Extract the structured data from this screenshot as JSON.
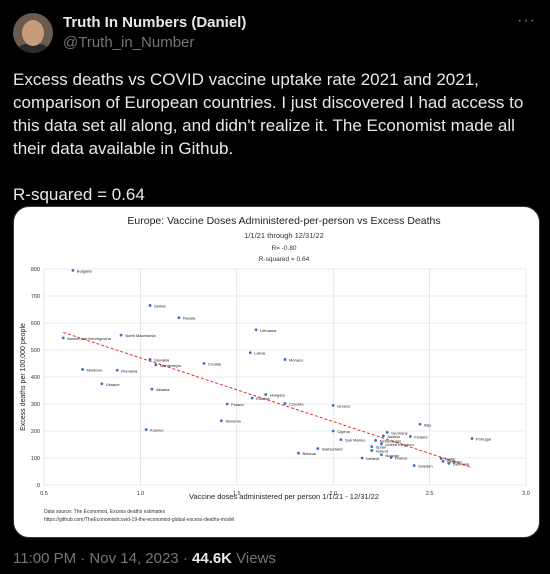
{
  "author": {
    "name": "Truth In Numbers (Daniel)",
    "handle": "@Truth_in_Number"
  },
  "tweet": {
    "text": "Excess deaths vs COVID vaccine uptake rate 2021 and 2021, comparison of European countries. I just discovered I had access to this data set all along, and didn't realize it. The Economist made all their data available in Github.",
    "rsq": "R-squared = 0.64"
  },
  "footer": {
    "time": "11:00 PM · Nov 14, 2023 · ",
    "views_count": "44.6K",
    "views_label": " Views"
  },
  "more_icon": "more-dots-icon",
  "chart_data": {
    "type": "scatter",
    "title": "Europe: Vaccine Doses Administered-per-person vs Excess Deaths",
    "subtitle_lines": [
      "1/1/21 through 12/31/22",
      "R= -0.80",
      "R-squared = 0.64"
    ],
    "xlabel": "Vaccine doses administered per person 1/1/21 - 12/31/22",
    "ylabel": "Excess deaths per 100,000 people",
    "xlim": [
      0.5,
      3.0
    ],
    "ylim": [
      0,
      800
    ],
    "xticks": [
      "0.5",
      "1.0",
      "1.5",
      "2.0",
      "2.5",
      "3.0"
    ],
    "yticks": [
      "0",
      "100",
      "200",
      "300",
      "400",
      "500",
      "600",
      "700",
      "800"
    ],
    "grid": true,
    "trendline": {
      "x": [
        0.6,
        2.72
      ],
      "y": [
        565,
        65
      ]
    },
    "source_lines": [
      "Data source: The Economist, Excess deaths estimates",
      "https://github.com/TheEconomist/covid-19-the-economist-global-excess-deaths-model"
    ],
    "colors": {
      "point": "#3a6fc4",
      "trend": "#e03030",
      "grid": "#d8d8d8"
    },
    "points": [
      {
        "label": "Bulgaria",
        "x": 0.65,
        "y": 795
      },
      {
        "label": "Serbia",
        "x": 1.05,
        "y": 665
      },
      {
        "label": "Russia",
        "x": 1.2,
        "y": 620
      },
      {
        "label": "Lithuania",
        "x": 1.6,
        "y": 575
      },
      {
        "label": "North Macedonia",
        "x": 0.9,
        "y": 555
      },
      {
        "label": "Bosnia and Herzegovina",
        "x": 0.6,
        "y": 545
      },
      {
        "label": "Latvia",
        "x": 1.57,
        "y": 490
      },
      {
        "label": "Monaco",
        "x": 1.75,
        "y": 465
      },
      {
        "label": "Slovakia",
        "x": 1.05,
        "y": 465
      },
      {
        "label": "Montenegro",
        "x": 1.08,
        "y": 445
      },
      {
        "label": "Croatia",
        "x": 1.33,
        "y": 450
      },
      {
        "label": "Moldova",
        "x": 0.7,
        "y": 428
      },
      {
        "label": "Romania",
        "x": 0.88,
        "y": 425
      },
      {
        "label": "Ukraine",
        "x": 0.8,
        "y": 375
      },
      {
        "label": "Albania",
        "x": 1.06,
        "y": 355
      },
      {
        "label": "Hungary",
        "x": 1.65,
        "y": 335
      },
      {
        "label": "Estonia",
        "x": 1.58,
        "y": 322
      },
      {
        "label": "Poland",
        "x": 1.45,
        "y": 300
      },
      {
        "label": "Czechia",
        "x": 1.75,
        "y": 302
      },
      {
        "label": "Greece",
        "x": 2.0,
        "y": 295
      },
      {
        "label": "Slovenia",
        "x": 1.42,
        "y": 238
      },
      {
        "label": "Kosovo",
        "x": 1.03,
        "y": 205
      },
      {
        "label": "Italy",
        "x": 2.45,
        "y": 225
      },
      {
        "label": "Cyprus",
        "x": 2.0,
        "y": 200
      },
      {
        "label": "Germany",
        "x": 2.28,
        "y": 195
      },
      {
        "label": "Austria",
        "x": 2.26,
        "y": 182
      },
      {
        "label": "Finland",
        "x": 2.4,
        "y": 180
      },
      {
        "label": "Portugal",
        "x": 2.72,
        "y": 172
      },
      {
        "label": "San Marino",
        "x": 2.04,
        "y": 168
      },
      {
        "label": "Netherlands",
        "x": 2.22,
        "y": 165
      },
      {
        "label": "United Kingdom",
        "x": 2.25,
        "y": 152
      },
      {
        "label": "Spain",
        "x": 2.2,
        "y": 142
      },
      {
        "label": "Switzerland",
        "x": 1.92,
        "y": 135
      },
      {
        "label": "Ireland",
        "x": 2.2,
        "y": 128
      },
      {
        "label": "Belarus",
        "x": 1.82,
        "y": 118
      },
      {
        "label": "Norway",
        "x": 2.25,
        "y": 112
      },
      {
        "label": "France",
        "x": 2.3,
        "y": 102
      },
      {
        "label": "Iceland",
        "x": 2.15,
        "y": 100
      },
      {
        "label": "Malta",
        "x": 2.56,
        "y": 98
      },
      {
        "label": "Belgium",
        "x": 2.57,
        "y": 88
      },
      {
        "label": "Denmark",
        "x": 2.6,
        "y": 80
      },
      {
        "label": "Sweden",
        "x": 2.42,
        "y": 72
      }
    ]
  }
}
